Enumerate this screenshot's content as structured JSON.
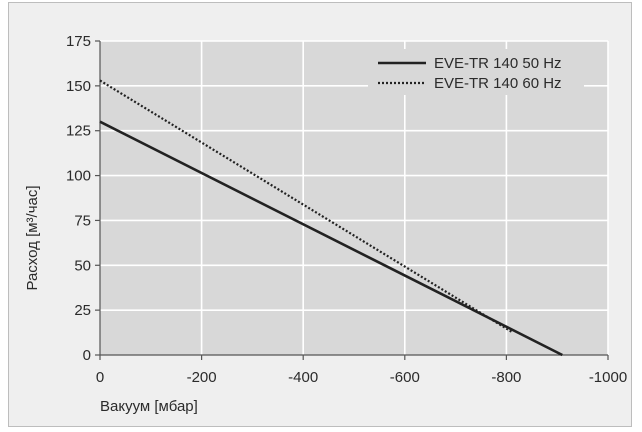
{
  "chart_data": {
    "type": "line",
    "xlabel": "Вакуум [мбар]",
    "ylabel": "Расход [м³/час]",
    "xlim": [
      0,
      -1000
    ],
    "ylim": [
      0,
      175
    ],
    "x_ticks": [
      0,
      -200,
      -400,
      -600,
      -800,
      -1000
    ],
    "x_tick_labels": [
      "0",
      "-200",
      "-400",
      "-600",
      "-800",
      "-1000"
    ],
    "y_ticks": [
      0,
      25,
      50,
      75,
      100,
      125,
      150,
      175
    ],
    "y_tick_labels": [
      "0",
      "25",
      "50",
      "75",
      "100",
      "125",
      "150",
      "175"
    ],
    "grid": true,
    "legend_position": "top-right",
    "series": [
      {
        "name": "EVE-TR 140 50 Hz",
        "line_style": "solid",
        "color": "#222222",
        "x": [
          0,
          -910
        ],
        "y": [
          130,
          0
        ]
      },
      {
        "name": "EVE-TR 140 60 Hz",
        "line_style": "dotted",
        "color": "#222222",
        "x": [
          0,
          -810
        ],
        "y": [
          153,
          13
        ]
      }
    ]
  },
  "colors": {
    "panel_background": "#efefef",
    "plot_background": "#d8d8d8",
    "grid": "#ffffff",
    "axis": "#555555",
    "text": "#2b2b2b"
  }
}
